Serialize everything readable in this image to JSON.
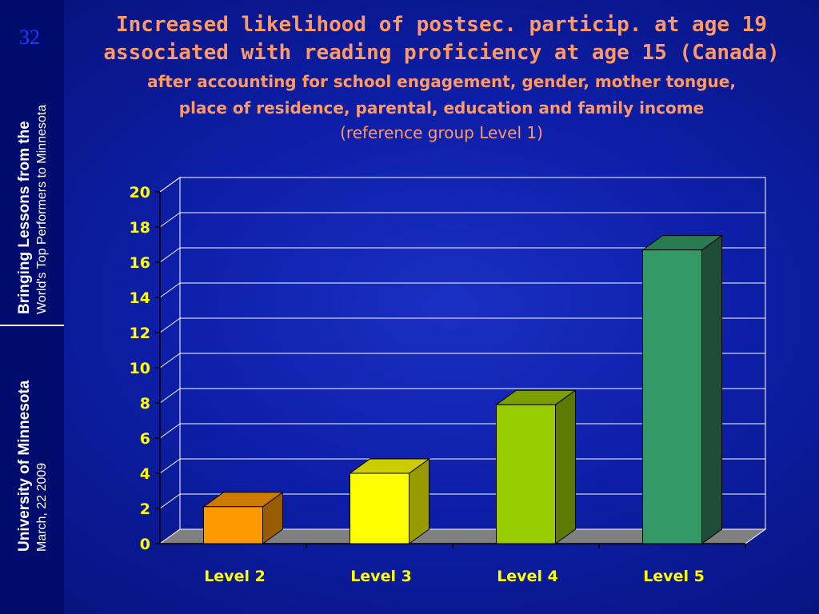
{
  "sidebar": {
    "slide_number": "32",
    "top_line1": "Bringing Lessons from the",
    "top_line2": "World's Top Performers to Minnesota",
    "bottom_line1": "University of Minnesota",
    "bottom_line2": "March, 22 2009"
  },
  "header": {
    "title_line1": "Increased likelihood of postsec. particip. at age 19",
    "title_line2": "associated with reading proficiency at age 15 (Canada)",
    "subtitle_line1": "after accounting for school engagement, gender, mother tongue,",
    "subtitle_line2": "place of residence, parental, education and family income",
    "reference": "(reference group Level 1)"
  },
  "chart_data": {
    "type": "bar",
    "categories": [
      "Level 2",
      "Level 3",
      "Level 4",
      "Level 5"
    ],
    "values": [
      2.1,
      4.0,
      7.9,
      16.7
    ],
    "ylim": [
      0,
      20
    ],
    "yticks": [
      "0",
      "2",
      "4",
      "6",
      "8",
      "10",
      "12",
      "14",
      "16",
      "18",
      "20"
    ],
    "grid": true,
    "colors": {
      "bars": [
        "#ff9900",
        "#ffff00",
        "#99cc00",
        "#339966"
      ],
      "bar_tops": [
        "#cc7a00",
        "#cccc00",
        "#7a9e00",
        "#287a50"
      ],
      "bar_sides": [
        "#995c00",
        "#999900",
        "#5c7a00",
        "#1f4d38"
      ],
      "tick_labels": "#ffff00",
      "grid": "#ffffff",
      "floor": "#808080"
    }
  }
}
